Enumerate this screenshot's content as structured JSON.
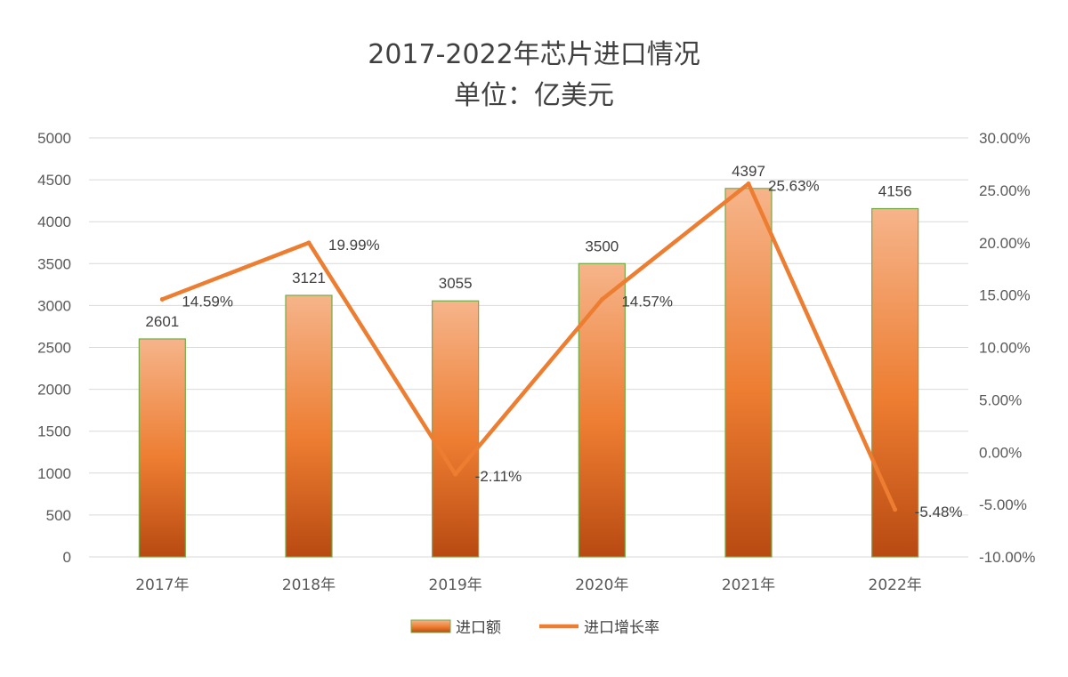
{
  "chart_data": {
    "type": "bar",
    "title": "2017-2022年芯片进口情况",
    "subtitle": "单位：亿美元",
    "categories": [
      "2017年",
      "2018年",
      "2019年",
      "2020年",
      "2021年",
      "2022年"
    ],
    "series": [
      {
        "name": "进口额",
        "type": "bar",
        "axis": "left",
        "values": [
          2601,
          3121,
          3055,
          3500,
          4397,
          4156
        ],
        "labels": [
          "2601",
          "3121",
          "3055",
          "3500",
          "4397",
          "4156"
        ]
      },
      {
        "name": "进口增长率",
        "type": "line",
        "axis": "right",
        "values": [
          14.59,
          19.99,
          -2.11,
          14.57,
          25.63,
          -5.48
        ],
        "labels": [
          "14.59%",
          "19.99%",
          "-2.11%",
          "14.57%",
          "25.63%",
          "-5.48%"
        ]
      }
    ],
    "ylim": [
      0,
      5000
    ],
    "y_ticks": [
      "5000",
      "4500",
      "4000",
      "3500",
      "3000",
      "2500",
      "2000",
      "1500",
      "1000",
      "500",
      "0"
    ],
    "y2lim": [
      -10,
      30
    ],
    "y2_ticks": [
      "30.00%",
      "25.00%",
      "20.00%",
      "15.00%",
      "10.00%",
      "5.00%",
      "0.00%",
      "-5.00%",
      "-10.00%"
    ],
    "grid": true,
    "legend_position": "bottom",
    "colors": {
      "bar": "#ed7d31",
      "bar_light": "#f6b48a",
      "bar_dark": "#b84a12",
      "bar_border": "#70ad47",
      "line": "#ed7d31",
      "grid": "#d9d9d9"
    }
  }
}
